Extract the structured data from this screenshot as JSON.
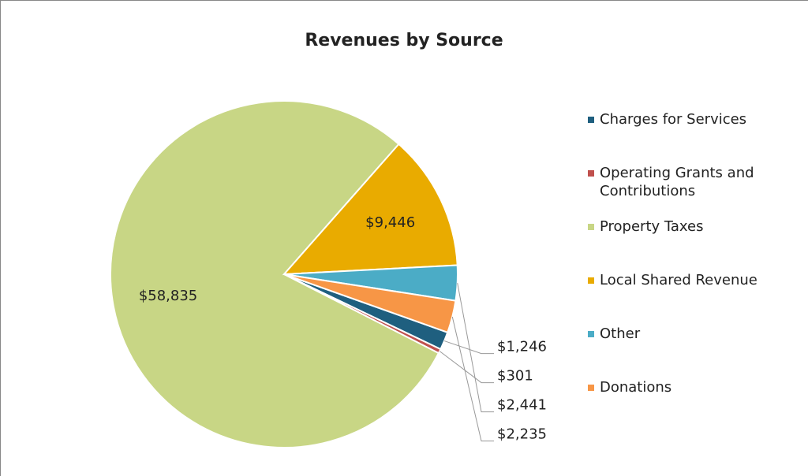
{
  "chart_data": {
    "type": "pie",
    "title": "Revenues by Source",
    "categories": [
      "Charges for Services",
      "Operating Grants and Contributions",
      "Property Taxes",
      "Local Shared Revenue",
      "Other",
      "Donations"
    ],
    "values": [
      1246,
      301,
      58835,
      9446,
      2441,
      2235
    ],
    "value_labels": [
      "$1,246",
      "$301",
      "$58,835",
      "$9,446",
      "$2,441",
      "$2,235"
    ],
    "colors": [
      "#1f5f7f",
      "#c0504d",
      "#c8d685",
      "#e9ab00",
      "#4bacc6",
      "#f79646"
    ],
    "legend": "right"
  }
}
